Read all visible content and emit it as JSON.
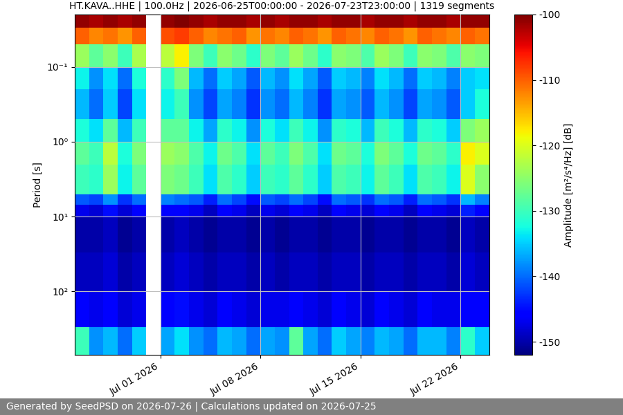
{
  "chart_data": {
    "type": "heatmap",
    "title": "HT.KAVA..HHE | 100.0Hz | 2026-06-25T00:00:00 - 2026-07-23T23:00:00 | 1319 segments",
    "y_label": "Period [s]",
    "footer": "Generated by SeedPSD on 2026-07-26 | Calculations updated on 2026-07-25",
    "log": "y",
    "grid": true,
    "x_edges": [
      "2026-06-25",
      "2026-06-26",
      "2026-06-27",
      "2026-06-28",
      "2026-06-29",
      "2026-06-30",
      "2026-07-01",
      "2026-07-02",
      "2026-07-03",
      "2026-07-04",
      "2026-07-05",
      "2026-07-06",
      "2026-07-07",
      "2026-07-08",
      "2026-07-09",
      "2026-07-10",
      "2026-07-11",
      "2026-07-12",
      "2026-07-13",
      "2026-07-14",
      "2026-07-15",
      "2026-07-16",
      "2026-07-17",
      "2026-07-18",
      "2026-07-19",
      "2026-07-20",
      "2026-07-21",
      "2026-07-22",
      "2026-07-23",
      "2026-07-24"
    ],
    "y_edges": [
      0.02,
      0.03,
      0.05,
      0.1,
      0.2,
      0.5,
      1,
      2,
      5,
      7,
      10,
      30,
      100,
      300,
      700
    ],
    "cells": [
      [
        -101,
        -102,
        -101,
        -102,
        -101,
        null,
        -101,
        -100,
        -101,
        -102,
        -101,
        -101,
        -102,
        -101,
        -102,
        -101,
        -101,
        -102,
        -101,
        -101,
        -102,
        -101,
        -101,
        -102,
        -101,
        -101,
        -102,
        -101,
        -101
      ],
      [
        -110,
        -112,
        -111,
        -113,
        -110,
        null,
        -109,
        -108,
        -110,
        -112,
        -111,
        -110,
        -113,
        -111,
        -112,
        -110,
        -111,
        -113,
        -110,
        -111,
        -112,
        -110,
        -111,
        -113,
        -110,
        -111,
        -112,
        -110,
        -111
      ],
      [
        -124,
        -128,
        -125,
        -130,
        -123,
        null,
        -122,
        -118,
        -126,
        -130,
        -125,
        -127,
        -131,
        -126,
        -128,
        -124,
        -127,
        -131,
        -125,
        -126,
        -129,
        -124,
        -126,
        -130,
        -125,
        -126,
        -129,
        -125,
        -126
      ],
      [
        -133,
        -138,
        -134,
        -140,
        -132,
        null,
        -131,
        -126,
        -136,
        -140,
        -135,
        -137,
        -141,
        -136,
        -138,
        -134,
        -137,
        -141,
        -135,
        -136,
        -139,
        -134,
        -136,
        -140,
        -135,
        -136,
        -139,
        -135,
        -134
      ],
      [
        -136,
        -140,
        -135,
        -142,
        -134,
        null,
        -133,
        -130,
        -138,
        -142,
        -137,
        -139,
        -143,
        -138,
        -140,
        -136,
        -139,
        -143,
        -137,
        -138,
        -141,
        -136,
        -138,
        -142,
        -137,
        -138,
        -141,
        -135,
        -132
      ],
      [
        -132,
        -134,
        -128,
        -136,
        -130,
        null,
        -128,
        -128,
        -133,
        -137,
        -131,
        -133,
        -138,
        -132,
        -134,
        -130,
        -133,
        -138,
        -131,
        -132,
        -136,
        -130,
        -132,
        -136,
        -131,
        -132,
        -135,
        -126,
        -124
      ],
      [
        -128,
        -130,
        -122,
        -132,
        -126,
        null,
        -124,
        -125,
        -129,
        -133,
        -127,
        -129,
        -134,
        -128,
        -130,
        -126,
        -129,
        -134,
        -127,
        -128,
        -132,
        -126,
        -128,
        -132,
        -127,
        -128,
        -131,
        -118,
        -120
      ],
      [
        -130,
        -131,
        -124,
        -133,
        -128,
        null,
        -126,
        -127,
        -130,
        -134,
        -129,
        -131,
        -135,
        -130,
        -131,
        -128,
        -131,
        -135,
        -129,
        -130,
        -133,
        -128,
        -130,
        -134,
        -129,
        -130,
        -133,
        -120,
        -125
      ],
      [
        -141,
        -142,
        -138,
        -143,
        -140,
        null,
        -139,
        -140,
        -141,
        -144,
        -140,
        -142,
        -145,
        -141,
        -142,
        -140,
        -142,
        -145,
        -140,
        -141,
        -143,
        -140,
        -141,
        -144,
        -140,
        -141,
        -143,
        -136,
        -139
      ],
      [
        -147,
        -148,
        -145,
        -148,
        -146,
        null,
        -146,
        -146,
        -147,
        -149,
        -146,
        -147,
        -149,
        -147,
        -148,
        -146,
        -147,
        -149,
        -146,
        -147,
        -148,
        -146,
        -147,
        -149,
        -146,
        -147,
        -148,
        -144,
        -146
      ],
      [
        -150,
        -150,
        -149,
        -151,
        -150,
        null,
        -150,
        -149,
        -150,
        -151,
        -150,
        -150,
        -151,
        -150,
        -151,
        -150,
        -150,
        -151,
        -150,
        -150,
        -151,
        -150,
        -150,
        -151,
        -150,
        -150,
        -151,
        -149,
        -150
      ],
      [
        -149,
        -149,
        -148,
        -150,
        -149,
        null,
        -149,
        -148,
        -149,
        -150,
        -149,
        -149,
        -150,
        -149,
        -150,
        -149,
        -149,
        -150,
        -149,
        -149,
        -150,
        -149,
        -149,
        -150,
        -149,
        -149,
        -150,
        -148,
        -149
      ],
      [
        -146,
        -147,
        -146,
        -148,
        -147,
        null,
        -146,
        -145,
        -147,
        -148,
        -146,
        -147,
        -148,
        -147,
        -147,
        -146,
        -147,
        -148,
        -146,
        -147,
        -148,
        -146,
        -147,
        -148,
        -146,
        -147,
        -147,
        -146,
        -146
      ],
      [
        -130,
        -138,
        -136,
        -140,
        -135,
        null,
        -137,
        -134,
        -138,
        -140,
        -136,
        -137,
        -140,
        -137,
        -138,
        -128,
        -137,
        -140,
        -135,
        -137,
        -139,
        -136,
        -137,
        -140,
        -136,
        -136,
        -139,
        -131,
        -135
      ]
    ],
    "xlim": [
      "2026-06-25",
      "2026-07-24"
    ],
    "xticks": [
      {
        "value": "2026-07-01",
        "label": "Jul 01 2026"
      },
      {
        "value": "2026-07-08",
        "label": "Jul 08 2026"
      },
      {
        "value": "2026-07-15",
        "label": "Jul 15 2026"
      },
      {
        "value": "2026-07-22",
        "label": "Jul 22 2026"
      }
    ],
    "ylim": [
      700,
      0.02
    ],
    "yticks": [
      {
        "value": 0.1,
        "label": "10⁻¹"
      },
      {
        "value": 1,
        "label": "10⁰"
      },
      {
        "value": 10,
        "label": "10¹"
      },
      {
        "value": 100,
        "label": "10²"
      }
    ],
    "colorbar": {
      "label": "Amplitude [m²/s⁴/Hz] [dB]",
      "range": [
        -152,
        -100
      ],
      "ticks": [
        -150,
        -140,
        -130,
        -120,
        -110,
        -100
      ]
    }
  }
}
